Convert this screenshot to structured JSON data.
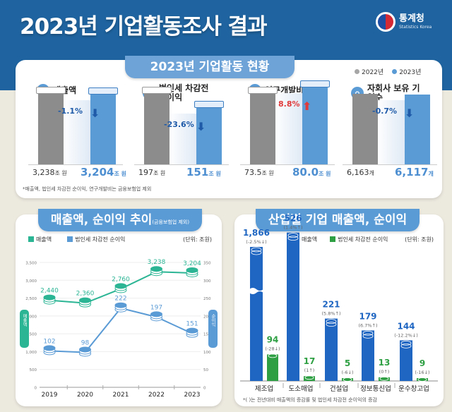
{
  "header": {
    "title": "2023년 기업활동조사 결과",
    "logo_name": "통계청",
    "logo_sub": "Statistics Korea"
  },
  "overview": {
    "title": "2023년 기업활동 현황",
    "legend": [
      {
        "label": "2022년",
        "color": "#a6a6a6"
      },
      {
        "label": "2023년",
        "color": "#5b9bd5"
      }
    ],
    "metrics": [
      {
        "label": "매출액",
        "icon": "money-icon",
        "change": "-1.1%",
        "direction": "down",
        "v2022": "3,238",
        "v2023": "3,204",
        "unit": "조 원",
        "ratio": 0.989
      },
      {
        "label": "법인세 차감전 순이익",
        "icon": "money-icon",
        "change": "-23.6%",
        "direction": "down",
        "v2022": "197",
        "v2023": "151",
        "unit": "조 원",
        "ratio": 0.764
      },
      {
        "label": "연구개발비",
        "icon": "research-icon",
        "change": "8.8%",
        "direction": "up",
        "v2022": "73.5",
        "v2023": "80.0",
        "unit": "조 원",
        "ratio": 1.088
      },
      {
        "label": "자회사 보유 기업수",
        "icon": "company-icon",
        "change": "-0.7%",
        "direction": "down",
        "v2022": "6,163",
        "v2023": "6,117",
        "unit": "개",
        "ratio": 0.993
      }
    ],
    "note": "*매출액, 법인세 차감전 순이익, 연구개발비는 금융보험업 제외"
  },
  "trend": {
    "title": "매출액, 순이익 추이",
    "title_note": "(금융보험업 제외)",
    "unit": "(단위: 조원)",
    "left_axis_label": "매출액",
    "right_axis_label": "순이익"
  },
  "industry": {
    "title": "산업별 기업 매출액, 순이익",
    "unit": "(단위: 조원)",
    "note": "*( )는 전년대비 매출액의 증감률 및 법인세 차감전 순이익의 증감"
  },
  "chart_data": [
    {
      "type": "line",
      "title": "매출액, 순이익 추이(금융보험업 제외)",
      "x": [
        "2019",
        "2020",
        "2021",
        "2022",
        "2023"
      ],
      "series": [
        {
          "name": "매출액",
          "axis": "left",
          "color": "#2bb594",
          "values": [
            2440,
            2360,
            2760,
            3238,
            3204
          ],
          "labels": [
            "2,440",
            "2,360",
            "2,760",
            "3,238",
            "3,204"
          ]
        },
        {
          "name": "법인세 차감전 순이익",
          "axis": "right",
          "color": "#5b9bd5",
          "values": [
            102,
            98,
            222,
            197,
            151
          ],
          "labels": [
            "102",
            "98",
            "222",
            "197",
            "151"
          ]
        }
      ],
      "left_ylim": [
        0,
        3500
      ],
      "left_ticks": [
        "0",
        "500",
        "1,000",
        "1,500",
        "2,000",
        "2,500",
        "3,000",
        "3,500"
      ],
      "right_ylim": [
        0,
        350
      ],
      "right_ticks": [
        "0",
        "50",
        "100",
        "150",
        "200",
        "250",
        "300",
        "350"
      ],
      "ylabel_left": "매출액",
      "ylabel_right": "순이익",
      "unit": "(단위: 조원)",
      "grid": true,
      "legend": "top-left"
    },
    {
      "type": "bar",
      "title": "산업별 기업 매출액, 순이익",
      "categories": [
        "제조업",
        "도소매업",
        "건설업",
        "정보통신업",
        "운수창고업"
      ],
      "series": [
        {
          "name": "매출액",
          "color": "#1f66c2",
          "values": [
            1866,
            526,
            221,
            179,
            144
          ],
          "labels": [
            "1,866",
            "526",
            "221",
            "179",
            "144"
          ],
          "changes": [
            "(-2.5%↓)",
            "(1.4%↑)",
            "(5.8%↑)",
            "(6.7%↑)",
            "(-12.2%↓)"
          ]
        },
        {
          "name": "법인세 차감전 순이익",
          "color": "#2ea043",
          "values": [
            94,
            17,
            5,
            13,
            9
          ],
          "labels": [
            "94",
            "17",
            "5",
            "13",
            "9"
          ],
          "changes": [
            "(-28↓)",
            "(1↑)",
            "(-6↓)",
            "(0↑)",
            "(-16↓)"
          ]
        }
      ],
      "axis_break": true,
      "unit": "(단위: 조원)",
      "legend": "top-right"
    }
  ]
}
